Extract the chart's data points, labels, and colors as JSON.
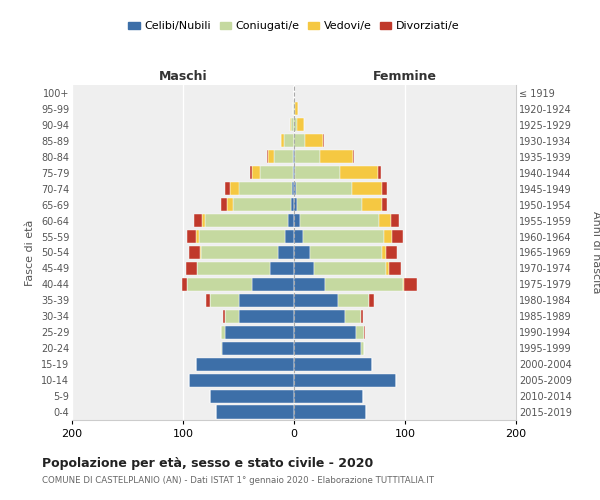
{
  "age_groups": [
    "100+",
    "95-99",
    "90-94",
    "85-89",
    "80-84",
    "75-79",
    "70-74",
    "65-69",
    "60-64",
    "55-59",
    "50-54",
    "45-49",
    "40-44",
    "35-39",
    "30-34",
    "25-29",
    "20-24",
    "15-19",
    "10-14",
    "5-9",
    "0-4"
  ],
  "birth_years": [
    "≤ 1919",
    "1920-1924",
    "1925-1929",
    "1930-1934",
    "1935-1939",
    "1940-1944",
    "1945-1949",
    "1950-1954",
    "1955-1959",
    "1960-1964",
    "1965-1969",
    "1970-1974",
    "1975-1979",
    "1980-1984",
    "1985-1989",
    "1990-1994",
    "1995-1999",
    "2000-2004",
    "2005-2009",
    "2010-2014",
    "2015-2019"
  ],
  "males_celibi": [
    0,
    0,
    0,
    0,
    1,
    1,
    2,
    3,
    5,
    8,
    14,
    22,
    38,
    50,
    50,
    62,
    65,
    88,
    95,
    76,
    70
  ],
  "males_coniugati": [
    0,
    1,
    3,
    9,
    17,
    30,
    48,
    52,
    75,
    78,
    70,
    65,
    58,
    26,
    12,
    4,
    1,
    0,
    0,
    0,
    0
  ],
  "males_vedovi": [
    0,
    0,
    1,
    3,
    5,
    7,
    8,
    5,
    3,
    2,
    1,
    0,
    0,
    0,
    0,
    0,
    0,
    0,
    0,
    0,
    0
  ],
  "males_divorziati": [
    0,
    0,
    0,
    0,
    1,
    2,
    4,
    6,
    7,
    8,
    10,
    10,
    5,
    3,
    2,
    0,
    0,
    0,
    0,
    0,
    0
  ],
  "females_nubili": [
    0,
    0,
    0,
    0,
    1,
    1,
    2,
    3,
    5,
    8,
    14,
    18,
    28,
    40,
    46,
    56,
    60,
    70,
    92,
    62,
    65
  ],
  "females_coniugate": [
    0,
    1,
    3,
    10,
    22,
    40,
    50,
    58,
    72,
    73,
    65,
    65,
    70,
    28,
    14,
    7,
    3,
    0,
    0,
    0,
    0
  ],
  "females_vedove": [
    0,
    3,
    6,
    16,
    30,
    35,
    27,
    18,
    10,
    7,
    4,
    3,
    1,
    0,
    0,
    0,
    0,
    0,
    0,
    0,
    0
  ],
  "females_divorziate": [
    0,
    0,
    0,
    1,
    1,
    2,
    5,
    5,
    8,
    10,
    10,
    10,
    12,
    4,
    2,
    1,
    0,
    0,
    0,
    0,
    0
  ],
  "color_celibi": "#3d6fa8",
  "color_coniugati": "#c5d9a0",
  "color_vedovi": "#f5c842",
  "color_divorziati": "#c0392b",
  "xlim_min": -200,
  "xlim_max": 200,
  "xticks": [
    -200,
    -100,
    0,
    100,
    200
  ],
  "xticklabels": [
    "200",
    "100",
    "0",
    "100",
    "200"
  ],
  "title": "Popolazione per età, sesso e stato civile - 2020",
  "subtitle": "COMUNE DI CASTELPLANIO (AN) - Dati ISTAT 1° gennaio 2020 - Elaborazione TUTTITALIA.IT",
  "ylabel_left": "Fasce di età",
  "ylabel_right": "Anni di nascita",
  "maschi_label": "Maschi",
  "femmine_label": "Femmine",
  "legend_labels": [
    "Celibi/Nubili",
    "Coniugati/e",
    "Vedovi/e",
    "Divorziati/e"
  ],
  "bg_color": "#efefef",
  "bar_height": 0.82
}
